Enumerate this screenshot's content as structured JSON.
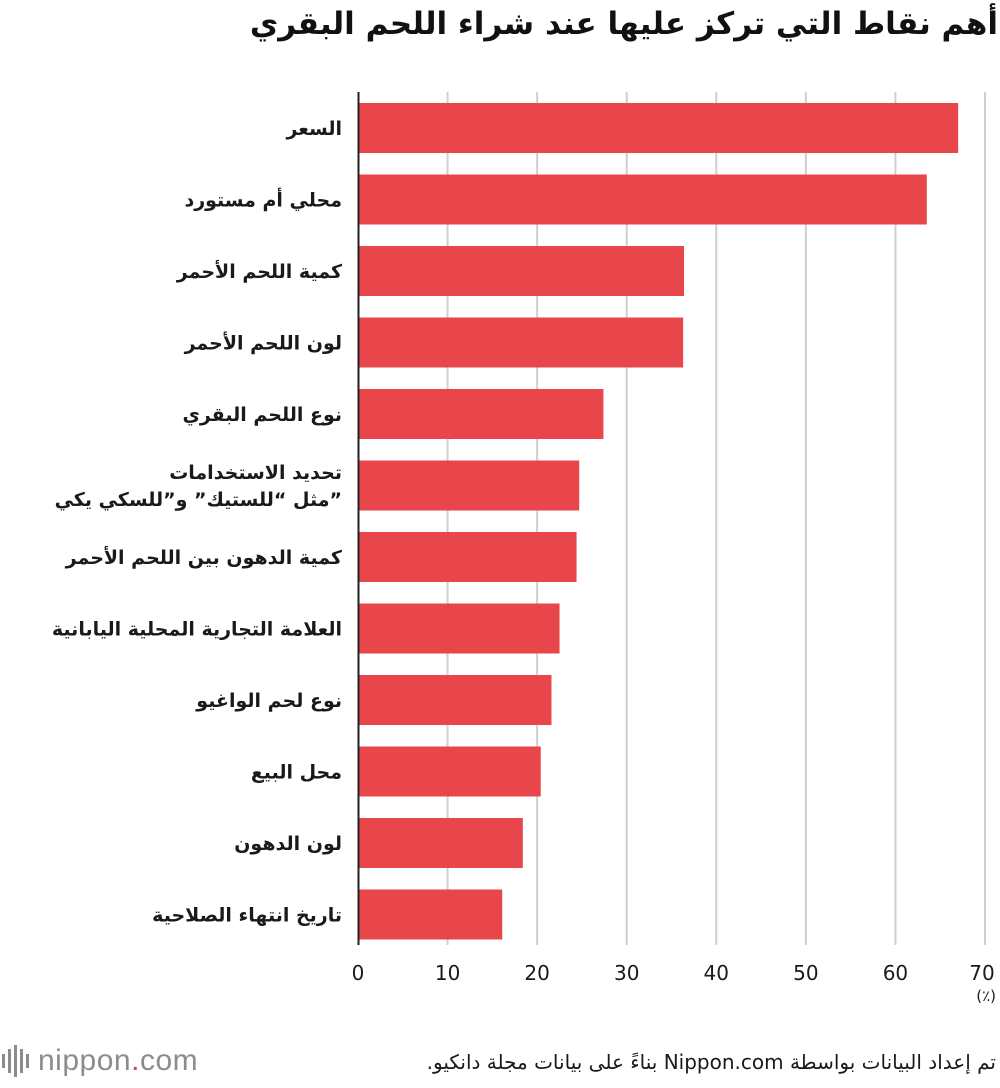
{
  "title": "أهم نقاط التي تركز عليها عند شراء اللحم البقري",
  "unit_label": "(٪)",
  "source_text": "تم إعداد البيانات بواسطة Nippon.com بناءً على بيانات مجلة دانكيو.",
  "logo": {
    "name": "nippon",
    "dot": ".",
    "suffix": "com",
    "icon": "nippon-waveform-icon",
    "color": "#8c8c8c",
    "accent": "#e8434a"
  },
  "chart_data": {
    "type": "bar",
    "orientation": "horizontal",
    "title": "أهم نقاط التي تركز عليها عند شراء اللحم البقري",
    "xlabel": "(٪)",
    "ylabel": "",
    "xlim": [
      0,
      70
    ],
    "ticks": [
      0,
      10,
      20,
      30,
      40,
      50,
      60,
      70
    ],
    "grid": true,
    "bar_color": "#e8464b",
    "categories": [
      "السعر",
      "محلي أم مستورد",
      "كمية اللحم الأحمر",
      "لون اللحم الأحمر",
      "نوع اللحم البقري",
      "تحديد الاستخدامات مثل “للستيك” و”للسكي يكي”",
      "كمية الدهون بين اللحم الأحمر",
      "العلامة التجارية المحلية اليابانية",
      "نوع لحم الواغيو",
      "محل البيع",
      "لون الدهون",
      "تاريخ انتهاء الصلاحية"
    ],
    "label_lines": [
      [
        "السعر"
      ],
      [
        "محلي أم مستورد"
      ],
      [
        "كمية اللحم الأحمر"
      ],
      [
        "لون اللحم الأحمر"
      ],
      [
        "نوع اللحم البقري"
      ],
      [
        "تحديد الاستخدامات",
        "مثل “للستيك” و”للسكي يكي”"
      ],
      [
        "كمية الدهون بين اللحم الأحمر"
      ],
      [
        "العلامة التجارية المحلية اليابانية"
      ],
      [
        "نوع لحم الواغيو"
      ],
      [
        "محل البيع"
      ],
      [
        "لون الدهون"
      ],
      [
        "تاريخ انتهاء الصلاحية"
      ]
    ],
    "values": [
      67.0,
      63.5,
      36.4,
      36.3,
      27.4,
      24.7,
      24.4,
      22.5,
      21.6,
      20.4,
      18.4,
      16.1
    ]
  }
}
